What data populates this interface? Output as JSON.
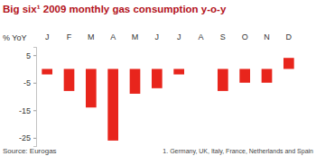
{
  "chart_data": {
    "type": "bar",
    "title": "Big six¹ 2009 monthly gas consumption y-o-y",
    "y_label": "% YoY",
    "categories": [
      "J",
      "F",
      "M",
      "A",
      "M",
      "J",
      "J",
      "A",
      "S",
      "O",
      "N",
      "D"
    ],
    "values": [
      -2,
      -8,
      -14,
      -26,
      -9,
      -7,
      -2,
      0,
      -8,
      -5,
      -5,
      4
    ],
    "color": "#e8251c",
    "ylim": [
      -28,
      8
    ],
    "yticks": [
      5,
      -5,
      -15,
      -25
    ],
    "grid": false,
    "annotations": [
      "Source: Eurogas",
      "1. Germany, UK, Italy, France, Netherlands and Spain"
    ]
  }
}
